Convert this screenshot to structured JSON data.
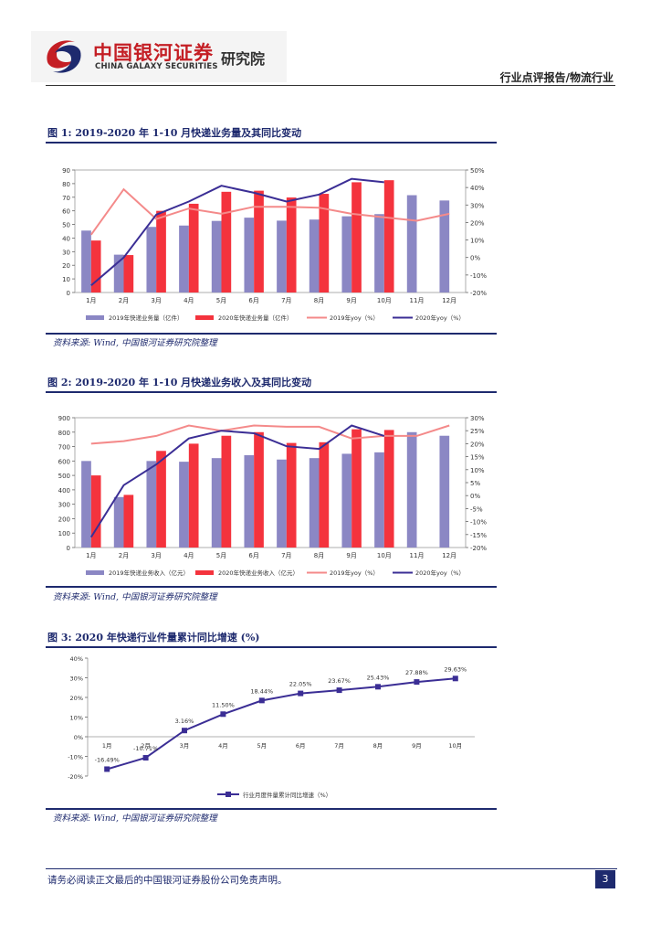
{
  "header": {
    "logo_cn": "中国银河证券",
    "logo_en": "CHINA GALAXY SECURITIES",
    "institute": "研究院",
    "report_type": "行业点评报告/物流行业"
  },
  "figures": [
    {
      "title": "图 1: 2019-2020 年 1-10 月快递业务量及其同比变动",
      "source": "资料来源: Wind, 中国银河证券研究院整理"
    },
    {
      "title": "图 2: 2019-2020 年 1-10 月快递业务收入及其同比变动",
      "source": "资料来源: Wind, 中国银河证券研究院整理"
    },
    {
      "title": "图 3: 2020 年快递行业件量累计同比增速 (%)",
      "source": "资料来源: Wind, 中国银河证券研究院整理"
    }
  ],
  "footer": {
    "disclaimer": "请务必阅读正文最后的中国银河证券股份公司免责声明。",
    "page_number": "3"
  },
  "colors": {
    "bar_2019": "#8b87c4",
    "bar_2020": "#f4333d",
    "line_2019": "#f48a8a",
    "line_2020": "#3b2e95",
    "brand_red": "#c41e24",
    "brand_navy": "#1e2a6e"
  },
  "chart_data": [
    {
      "type": "bar",
      "categories": [
        "1月",
        "2月",
        "3月",
        "4月",
        "5月",
        "6月",
        "7月",
        "8月",
        "9月",
        "10月",
        "11月",
        "12月"
      ],
      "series": [
        {
          "name": "2019年快递业务量（亿件）",
          "kind": "bar",
          "axis": "left",
          "values": [
            45.5,
            27.8,
            48.2,
            49.2,
            52.6,
            55.0,
            52.8,
            53.6,
            56.0,
            57.6,
            71.5,
            67.6
          ]
        },
        {
          "name": "2020年快递业务量（亿件）",
          "kind": "bar",
          "axis": "left",
          "values": [
            38.2,
            27.5,
            60.0,
            65.2,
            74.0,
            74.8,
            69.8,
            72.5,
            81.0,
            82.5,
            null,
            null
          ]
        },
        {
          "name": "2019年yoy（%）",
          "kind": "line",
          "axis": "right",
          "values": [
            13,
            39,
            22,
            28,
            25,
            29,
            29,
            28.5,
            25,
            23,
            21,
            25
          ]
        },
        {
          "name": "2020年yoy（%）",
          "kind": "line",
          "axis": "right",
          "values": [
            -16,
            0,
            24.5,
            32,
            41,
            37,
            32,
            36,
            45,
            43,
            null,
            null
          ]
        }
      ],
      "ylim_left": [
        0,
        90
      ],
      "ylim_right": [
        -20,
        50
      ],
      "left_ticks": [
        "0",
        "10",
        "20",
        "30",
        "40",
        "50",
        "60",
        "70",
        "80",
        "90"
      ],
      "right_ticks": [
        "-20%",
        "-10%",
        "0%",
        "10%",
        "20%",
        "30%",
        "40%",
        "50%"
      ],
      "legend": "bottom"
    },
    {
      "type": "bar",
      "categories": [
        "1月",
        "2月",
        "3月",
        "4月",
        "5月",
        "6月",
        "7月",
        "8月",
        "9月",
        "10月",
        "11月",
        "12月"
      ],
      "series": [
        {
          "name": "2019年快递业务收入（亿元）",
          "kind": "bar",
          "axis": "left",
          "values": [
            600,
            350,
            600,
            595,
            620,
            640,
            610,
            620,
            650,
            660,
            800,
            775
          ]
        },
        {
          "name": "2020年快递业务收入（亿元）",
          "kind": "bar",
          "axis": "left",
          "values": [
            500,
            365,
            670,
            720,
            775,
            800,
            725,
            730,
            820,
            815,
            null,
            null
          ]
        },
        {
          "name": "2019年yoy（%）",
          "kind": "line",
          "axis": "right",
          "values": [
            20,
            21,
            23,
            27,
            25,
            27,
            26.5,
            26.5,
            22,
            23,
            23,
            27
          ]
        },
        {
          "name": "2020年yoy（%）",
          "kind": "line",
          "axis": "right",
          "values": [
            -16,
            4,
            12,
            22,
            25,
            24,
            19,
            18,
            27,
            23,
            null,
            null
          ]
        }
      ],
      "ylim_left": [
        0,
        900
      ],
      "ylim_right": [
        -20,
        30
      ],
      "left_ticks": [
        "0",
        "100",
        "200",
        "300",
        "400",
        "500",
        "600",
        "700",
        "800",
        "900"
      ],
      "right_ticks": [
        "-20%",
        "-15%",
        "-10%",
        "-5%",
        "0%",
        "5%",
        "10%",
        "15%",
        "20%",
        "25%",
        "30%"
      ],
      "legend": "bottom"
    },
    {
      "type": "line",
      "categories": [
        "1月",
        "2月",
        "3月",
        "4月",
        "5月",
        "6月",
        "7月",
        "8月",
        "9月",
        "10月"
      ],
      "series": [
        {
          "name": "行业月度件量累计同比增速（%）",
          "values": [
            -16.49,
            -10.71,
            3.16,
            11.5,
            18.44,
            22.05,
            23.67,
            25.43,
            27.88,
            29.63
          ],
          "labels": [
            "-16.49%",
            "-10.71%",
            "3.16%",
            "11.50%",
            "18.44%",
            "22.05%",
            "23.67%",
            "25.43%",
            "27.88%",
            "29.63%"
          ]
        }
      ],
      "ylim": [
        -20,
        40
      ],
      "y_ticks": [
        "-20%",
        "-10%",
        "0%",
        "10%",
        "20%",
        "30%",
        "40%"
      ],
      "legend": "bottom"
    }
  ]
}
